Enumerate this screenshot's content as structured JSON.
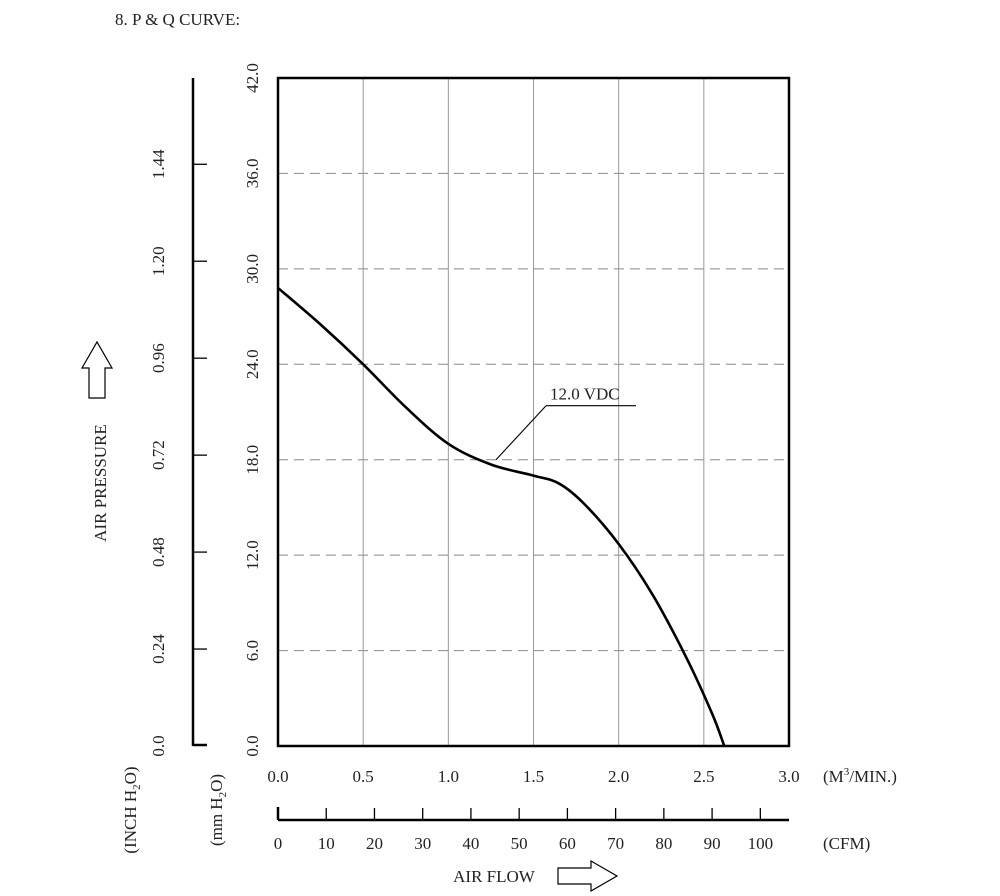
{
  "heading": "8. P & Q CURVE:",
  "chart_data": {
    "type": "line",
    "ylabel": "AIR PRESSURE",
    "xlabel": "AIR FLOW",
    "y_unit_inch": "(INCH H",
    "y_unit_inch_sub": "2",
    "y_unit_inch_end": "O)",
    "y_unit_mm": "(mm H",
    "y_unit_mm_sub": "2",
    "y_unit_mm_end": "O)",
    "x_unit_m3_a": "(M",
    "x_unit_m3_sup": "3",
    "x_unit_m3_b": "/MIN.)",
    "x_unit_cfm": "(CFM)",
    "xlim": [
      0,
      3.0
    ],
    "ylim": [
      0,
      42.0
    ],
    "x_ticks": [
      "0.0",
      "0.5",
      "1.0",
      "1.5",
      "2.0",
      "2.5",
      "3.0"
    ],
    "y_ticks_mm": [
      "0.0",
      "6.0",
      "12.0",
      "18.0",
      "24.0",
      "30.0",
      "36.0",
      "42.0"
    ],
    "y_ticks_inch": [
      "0.0",
      "0.24",
      "0.48",
      "0.72",
      "0.96",
      "1.20",
      "1.44"
    ],
    "cfm_ticks": [
      "0",
      "10",
      "20",
      "30",
      "40",
      "50",
      "60",
      "70",
      "80",
      "90",
      "100"
    ],
    "series": [
      {
        "name": "12.0 VDC",
        "x": [
          0.0,
          0.25,
          0.5,
          0.75,
          1.0,
          1.25,
          1.5,
          1.65,
          1.8,
          2.0,
          2.2,
          2.4,
          2.55,
          2.62
        ],
        "y": [
          28.8,
          26.5,
          24.0,
          21.3,
          19.0,
          17.7,
          17.0,
          16.5,
          15.2,
          12.7,
          9.5,
          5.5,
          2.0,
          0.0
        ]
      }
    ],
    "annotation": {
      "text": "12.0 VDC",
      "x": 1.28,
      "y": 18.0
    },
    "grid": true
  }
}
